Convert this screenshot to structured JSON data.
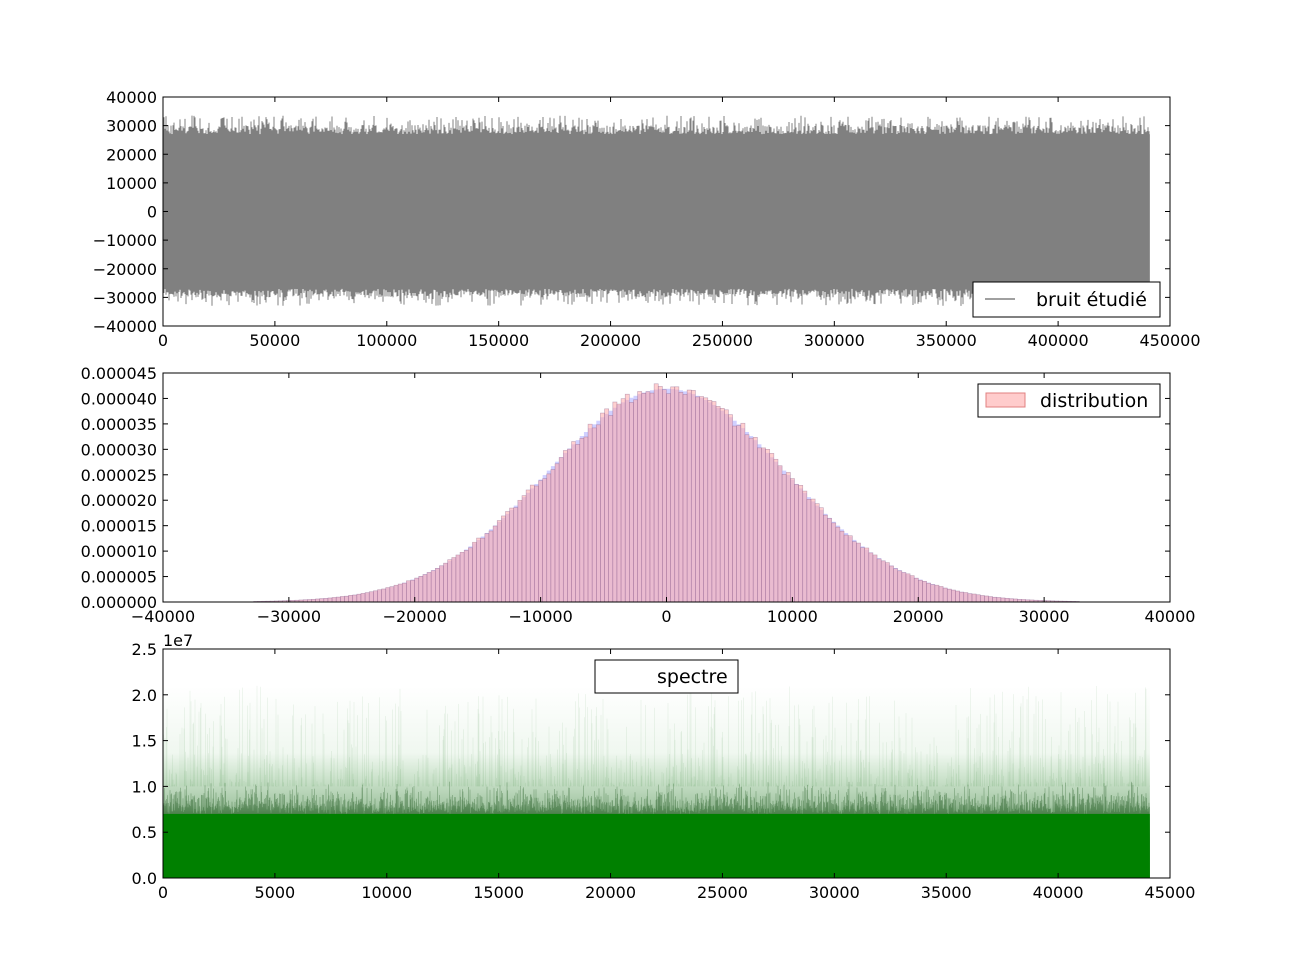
{
  "chart_data": [
    {
      "type": "line",
      "title": "",
      "xlabel": "",
      "ylabel": "",
      "xlim": [
        0,
        450000
      ],
      "ylim": [
        -40000,
        40000
      ],
      "xticks": [
        "0",
        "50000",
        "100000",
        "150000",
        "200000",
        "250000",
        "300000",
        "350000",
        "400000",
        "450000"
      ],
      "yticks": [
        "40000",
        "30000",
        "20000",
        "10000",
        "0",
        "−10000",
        "−20000",
        "−30000",
        "−40000"
      ],
      "series": [
        {
          "name": "bruit étudié",
          "color": "#808080",
          "x_range": [
            0,
            441000
          ],
          "envelope_typical": [
            -27000,
            27000
          ],
          "envelope_peak": [
            -33000,
            33500
          ]
        }
      ],
      "legend": {
        "position": "bottom-right",
        "label": "bruit étudié"
      }
    },
    {
      "type": "bar",
      "title": "",
      "xlabel": "",
      "ylabel": "",
      "xlim": [
        -40000,
        40000
      ],
      "ylim": [
        0,
        4.5e-05
      ],
      "xticks": [
        "−40000",
        "−30000",
        "−20000",
        "−10000",
        "0",
        "10000",
        "20000",
        "30000",
        "40000"
      ],
      "yticks": [
        "0.000045",
        "0.000040",
        "0.000035",
        "0.000030",
        "0.000025",
        "0.000020",
        "0.000015",
        "0.000010",
        "0.000005",
        "0.000000"
      ],
      "histogram": {
        "bins": 200,
        "range": [
          -32800,
          32800
        ],
        "mean": 0,
        "std": 9500,
        "peak_density": 4.19e-05
      },
      "series": [
        {
          "name": "distribution",
          "color": "#ffaaaa"
        },
        {
          "color": "#aaaaff"
        }
      ],
      "legend": {
        "position": "top-right",
        "label": "distribution"
      }
    },
    {
      "type": "area",
      "title": "",
      "xlabel": "",
      "ylabel": "",
      "offset_text": "1e7",
      "xlim": [
        0,
        45000
      ],
      "ylim": [
        0,
        2.5
      ],
      "xticks": [
        "0",
        "5000",
        "10000",
        "15000",
        "20000",
        "25000",
        "30000",
        "35000",
        "40000",
        "45000"
      ],
      "yticks": [
        "2.5",
        "2.0",
        "1.5",
        "1.0",
        "0.5",
        "0.0"
      ],
      "series": [
        {
          "name": "spectre",
          "color": "#008000",
          "x_range": [
            0,
            44100
          ],
          "solid_level": 0.7,
          "dense_level": 1.0,
          "max_level": 2.1
        }
      ],
      "legend": {
        "position": "top-center",
        "label": "spectre"
      }
    }
  ]
}
